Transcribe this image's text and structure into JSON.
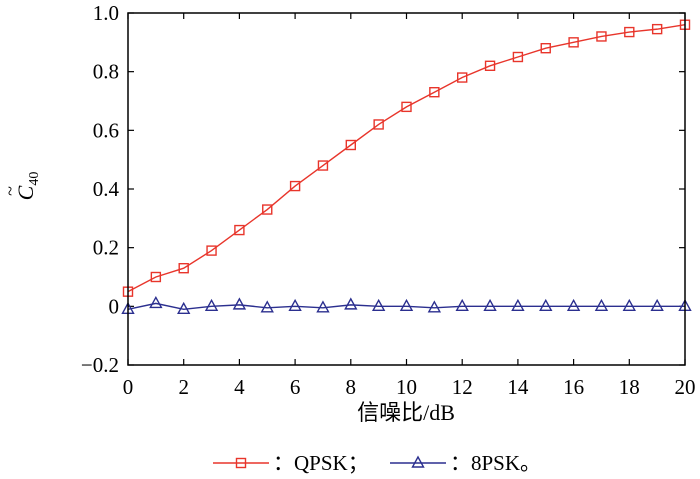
{
  "chart_data": {
    "type": "line",
    "xlabel": "信噪比/dB",
    "ylabel": {
      "base": "C",
      "accent": "~",
      "subscript": "40"
    },
    "xlim": [
      0,
      20
    ],
    "ylim": [
      -0.2,
      1.0
    ],
    "x_ticks": [
      0,
      2,
      4,
      6,
      8,
      10,
      12,
      14,
      16,
      18,
      20
    ],
    "y_ticks": [
      -0.2,
      0,
      0.2,
      0.4,
      0.6,
      0.8,
      1.0
    ],
    "x_tick_labels": [
      "0",
      "2",
      "4",
      "6",
      "8",
      "10",
      "12",
      "14",
      "16",
      "18",
      "20"
    ],
    "y_tick_labels": [
      "−0.2",
      "0",
      "0.2",
      "0.4",
      "0.6",
      "0.8",
      "1.0"
    ],
    "grid": false,
    "legend_position": "bottom-center",
    "x": [
      0,
      1,
      2,
      3,
      4,
      5,
      6,
      7,
      8,
      9,
      10,
      11,
      12,
      13,
      14,
      15,
      16,
      17,
      18,
      19,
      20
    ],
    "series": [
      {
        "name": "QPSK",
        "legend_label": "：QPSK；",
        "color": "#e8352b",
        "marker": "square",
        "values": [
          0.05,
          0.1,
          0.13,
          0.19,
          0.26,
          0.33,
          0.41,
          0.48,
          0.55,
          0.62,
          0.68,
          0.73,
          0.78,
          0.82,
          0.85,
          0.88,
          0.9,
          0.92,
          0.935,
          0.945,
          0.96
        ]
      },
      {
        "name": "8PSK",
        "legend_label": "：8PSK。",
        "color": "#2b2f8f",
        "marker": "triangle",
        "values": [
          -0.01,
          0.01,
          -0.01,
          0.0,
          0.005,
          -0.005,
          0.0,
          -0.005,
          0.005,
          0.0,
          0.0,
          -0.005,
          0.0,
          0.0,
          0.0,
          0.0,
          0.0,
          0.0,
          0.0,
          0.0,
          0.0
        ]
      }
    ]
  }
}
